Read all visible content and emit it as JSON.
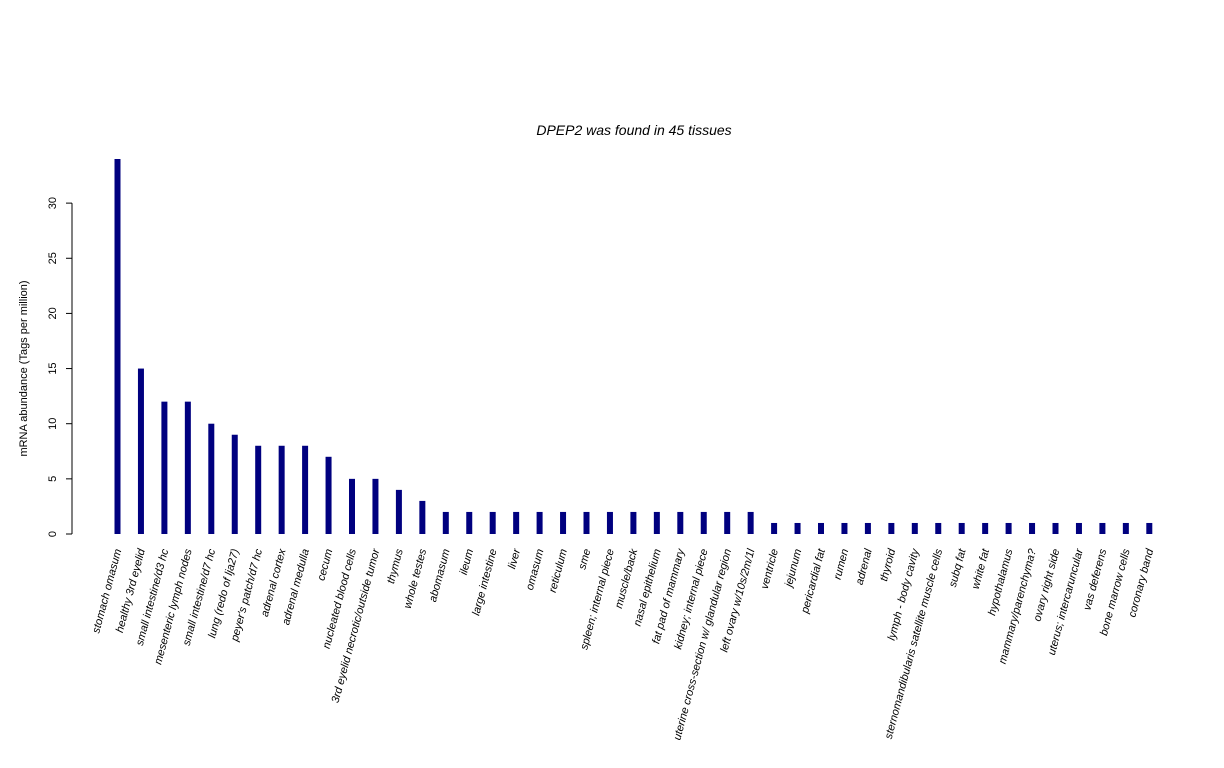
{
  "chart_data": {
    "type": "bar",
    "title": "DPEP2  was found in  45  tissues",
    "xlabel": "",
    "ylabel": "mRNA abundance (Tags per million)",
    "ylim": [
      0,
      34
    ],
    "yticks": [
      0,
      5,
      10,
      15,
      20,
      25,
      30
    ],
    "grid": false,
    "colors": {
      "bar": "#00007f"
    },
    "categories": [
      "stomach omasum",
      "healthy 3rd eyelid",
      "small intestine/d3 hc",
      "mesenteric lymph nodes",
      "small intestine/d7 hc",
      "lung (redo of lja27)",
      "peyer's patch/d7 hc",
      "adrenal cortex",
      "adrenal medulla",
      "cecum",
      "nucleated blood cells",
      "3rd eyelid necrotic/outside tumor",
      "thymus",
      "whole testes",
      "abomasum",
      "ileum",
      "large intestine",
      "liver",
      "omasum",
      "reticulum",
      "sme",
      "spleen; internal piece",
      "muscle/back",
      "nasal epithelium",
      "fat pad of mammary",
      "kidney; internal piece",
      "uterine cross-section w/ glandular region",
      "left ovary w/10s/2m/1l",
      "ventricle",
      "jejunum",
      "pericardial fat",
      "rumen",
      "adrenal",
      "thyroid",
      "lymph - body cavity",
      "sternomandibularis satellite muscle cells",
      "subq fat",
      "white fat",
      "hypothalamus",
      "mammary/parenchyma?",
      "ovary right side",
      "uterus; intercaruncular",
      "vas deferens",
      "bone marrow cells",
      "coronary band"
    ],
    "values": [
      34,
      15,
      12,
      12,
      10,
      9,
      8,
      8,
      8,
      7,
      5,
      5,
      4,
      3,
      2,
      2,
      2,
      2,
      2,
      2,
      2,
      2,
      2,
      2,
      2,
      2,
      2,
      2,
      1,
      1,
      1,
      1,
      1,
      1,
      1,
      1,
      1,
      1,
      1,
      1,
      1,
      1,
      1,
      1,
      1
    ]
  }
}
